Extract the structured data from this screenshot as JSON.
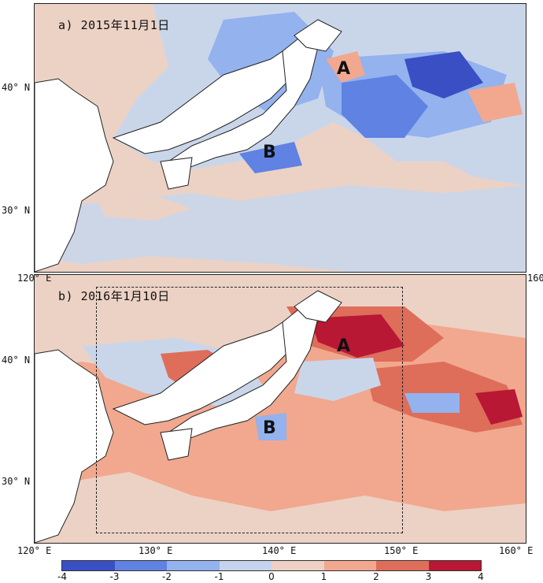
{
  "panels": {
    "a": {
      "title": "a) 2015年11月1日",
      "markers": {
        "A": "A",
        "B": "B"
      }
    },
    "b": {
      "title": "b) 2016年1月10日",
      "markers": {
        "A": "A",
        "B": "B"
      }
    }
  },
  "axes": {
    "lat_labels": [
      "40° N",
      "30° N"
    ],
    "lon_labels": [
      "120° E",
      "130° E",
      "140° E",
      "150° E",
      "160° E"
    ]
  },
  "colorbar": {
    "ticks": [
      "-4",
      "-3",
      "-2",
      "-1",
      "0",
      "1",
      "2",
      "3",
      "4"
    ],
    "colors": [
      "#3a4fc4",
      "#5f82e3",
      "#93b2ee",
      "#c6d3ec",
      "#ecd1c4",
      "#f1a88f",
      "#de6d5a",
      "#b81833"
    ]
  },
  "colors": {
    "land": "#ffffff",
    "neutral_cool": "#c9d6ea",
    "neutral_warm": "#ecd2c5"
  }
}
